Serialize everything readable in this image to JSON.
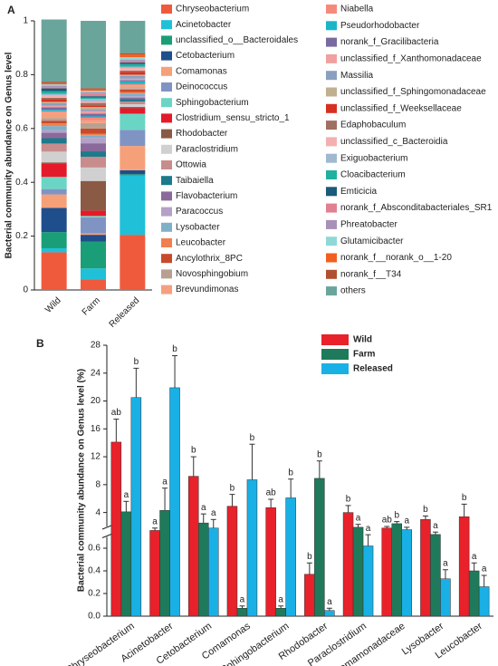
{
  "chart_data": [
    {
      "type": "stacked_bar",
      "panel": "A",
      "y_label": "Bacterial community abundance on Genus level",
      "categories": [
        "Wild",
        "Farm",
        "Released"
      ],
      "ylim": [
        0,
        1
      ],
      "yticks": [
        0,
        0.2,
        0.4,
        0.6,
        0.8,
        1
      ],
      "series": [
        {
          "name": "Chryseobacterium",
          "color": "#f05a3c",
          "values": [
            0.14,
            0.04,
            0.205
          ]
        },
        {
          "name": "Acinetobacter",
          "color": "#1fc0d8",
          "values": [
            0.015,
            0.04,
            0.22
          ]
        },
        {
          "name": "unclassified_o__Bacteroidales",
          "color": "#1a9e77",
          "values": [
            0.06,
            0.1,
            0.005
          ]
        },
        {
          "name": "Cetobacterium",
          "color": "#1f4e8c",
          "values": [
            0.09,
            0.025,
            0.015
          ]
        },
        {
          "name": "Comamonas",
          "color": "#f6a07a",
          "values": [
            0.05,
            0.005,
            0.09
          ]
        },
        {
          "name": "Deinococcus",
          "color": "#8094c4",
          "values": [
            0.02,
            0.06,
            0.06
          ]
        },
        {
          "name": "Sphingobacterium",
          "color": "#6bd5c5",
          "values": [
            0.045,
            0.005,
            0.06
          ]
        },
        {
          "name": "Clostridium_sensu_stricto_1",
          "color": "#e41a2a",
          "values": [
            0.05,
            0.02,
            0.02
          ]
        },
        {
          "name": "Rhodobacter",
          "color": "#8a5a44",
          "values": [
            0.004,
            0.11,
            0.005
          ]
        },
        {
          "name": "Paraclostridium",
          "color": "#d0d0d0",
          "values": [
            0.04,
            0.05,
            0.01
          ]
        },
        {
          "name": "Ottowia",
          "color": "#c98c8c",
          "values": [
            0.03,
            0.04,
            0.01
          ]
        },
        {
          "name": "Taibaiella",
          "color": "#1c7a8a",
          "values": [
            0.02,
            0.02,
            0.01
          ]
        },
        {
          "name": "Flavobacterium",
          "color": "#8a6a9a",
          "values": [
            0.02,
            0.03,
            0.005
          ]
        },
        {
          "name": "Paracoccus",
          "color": "#b5a0c8",
          "values": [
            0.01,
            0.02,
            0.005
          ]
        },
        {
          "name": "Lysobacter",
          "color": "#7fb0c8",
          "values": [
            0.015,
            0.01,
            0.01
          ]
        },
        {
          "name": "Leucobacter",
          "color": "#f08050",
          "values": [
            0.01,
            0.005,
            0.005
          ]
        },
        {
          "name": "Ancylothrix_8PC",
          "color": "#c84a2a",
          "values": [
            0.01,
            0.02,
            0.01
          ]
        },
        {
          "name": "Novosphingobium",
          "color": "#b8a090",
          "values": [
            0.01,
            0.02,
            0.005
          ]
        },
        {
          "name": "Brevundimonas",
          "color": "#f4a080",
          "values": [
            0.02,
            0.01,
            0.01
          ]
        },
        {
          "name": "Niabella",
          "color": "#f58a7a",
          "values": [
            0.005,
            0.01,
            0.005
          ]
        },
        {
          "name": "Pseudorhodobacter",
          "color": "#19b5c8",
          "values": [
            0.005,
            0.005,
            0.01
          ]
        },
        {
          "name": "norank_f_Gracilibacteria",
          "color": "#7a6aa0",
          "values": [
            0.01,
            0.01,
            0.005
          ]
        },
        {
          "name": "unclassified_f_Xanthomonadaceae",
          "color": "#f0a0a0",
          "values": [
            0.005,
            0.01,
            0.005
          ]
        },
        {
          "name": "Massilia",
          "color": "#8aa0c0",
          "values": [
            0.01,
            0.005,
            0.01
          ]
        },
        {
          "name": "unclassified_f_Sphingomonadaceae",
          "color": "#c0b090",
          "values": [
            0.005,
            0.01,
            0.005
          ]
        },
        {
          "name": "unclassified_f_Weeksellaceae",
          "color": "#d83020",
          "values": [
            0.01,
            0.005,
            0.01
          ]
        },
        {
          "name": "Edaphobaculum",
          "color": "#a07060",
          "values": [
            0.005,
            0.01,
            0.005
          ]
        },
        {
          "name": "unclassified_c_Bacteroidia",
          "color": "#f4b0b0",
          "values": [
            0.01,
            0.005,
            0.01
          ]
        },
        {
          "name": "Exiguobacterium",
          "color": "#a0b8d0",
          "values": [
            0.005,
            0.01,
            0.005
          ]
        },
        {
          "name": "Cloacibacterium",
          "color": "#20b0a0",
          "values": [
            0.01,
            0.005,
            0.01
          ]
        },
        {
          "name": "Emticicia",
          "color": "#1a5a7a",
          "values": [
            0.01,
            0.005,
            0.005
          ]
        },
        {
          "name": "norank_f_Absconditabacteriales_SR1",
          "color": "#e08090",
          "values": [
            0.005,
            0.01,
            0.005
          ]
        },
        {
          "name": "Phreatobacter",
          "color": "#a890b8",
          "values": [
            0.005,
            0.005,
            0.005
          ]
        },
        {
          "name": "Glutamicibacter",
          "color": "#90d8d8",
          "values": [
            0.005,
            0.005,
            0.01
          ]
        },
        {
          "name": "norank_f__norank_o__1-20",
          "color": "#f06020",
          "values": [
            0.005,
            0.005,
            0.01
          ]
        },
        {
          "name": "norank_f__T34",
          "color": "#b05030",
          "values": [
            0.005,
            0.005,
            0.005
          ]
        },
        {
          "name": "others",
          "color": "#6aa59c",
          "values": [
            0.231,
            0.25,
            0.12
          ]
        }
      ]
    },
    {
      "type": "grouped_bar_broken",
      "panel": "B",
      "y_label": "Bacterial community abundance on Genus level (%)",
      "categories": [
        "Chryseobacterium",
        "Acinetobacter",
        "Cetobacterium",
        "Comamonas",
        "Sphingobacterium",
        "Rhodobacter",
        "Paraclostridium",
        "Comamonadaceae",
        "Lysobacter",
        "Leucobacter"
      ],
      "ylim_lower": [
        0,
        0.7
      ],
      "ylim_upper": [
        2,
        28
      ],
      "yticks": [
        {
          "value": 0,
          "label": "0.0"
        },
        0.2,
        0.4,
        0.6,
        4,
        8,
        12,
        16,
        20,
        24,
        28
      ],
      "series": [
        {
          "name": "Wild",
          "color": "#e8212a",
          "values": [
            14.1,
            1.5,
            9.2,
            4.9,
            4.7,
            0.37,
            4.0,
            1.8,
            3.0,
            3.4
          ],
          "errors": [
            3.3,
            0.3,
            2.8,
            1.7,
            1.2,
            0.1,
            1.0,
            0.2,
            0.5,
            1.8
          ],
          "letters": [
            "ab",
            "a",
            "b",
            "b",
            "ab",
            "b",
            "b",
            "ab",
            "b",
            "b"
          ]
        },
        {
          "name": "Farm",
          "color": "#1e7a5a",
          "values": [
            4.1,
            4.3,
            2.5,
            0.07,
            0.07,
            8.9,
            1.9,
            2.4,
            1.0,
            0.4
          ],
          "errors": [
            1.5,
            3.2,
            1.3,
            0.02,
            0.02,
            2.5,
            0.4,
            0.3,
            0.3,
            0.07
          ],
          "letters": [
            "a",
            "a",
            "a",
            "a",
            "a",
            "b",
            "a",
            "b",
            "a",
            "a"
          ]
        },
        {
          "name": "Released",
          "color": "#19b0e6",
          "values": [
            20.5,
            21.9,
            1.8,
            8.7,
            6.1,
            0.05,
            0.62,
            1.6,
            0.33,
            0.26
          ],
          "errors": [
            4.2,
            4.6,
            1.2,
            5.1,
            2.7,
            0.02,
            0.35,
            0.3,
            0.08,
            0.1
          ],
          "letters": [
            "b",
            "b",
            "a",
            "b",
            "b",
            "a",
            "a",
            "a",
            "a",
            "a"
          ]
        }
      ]
    }
  ]
}
